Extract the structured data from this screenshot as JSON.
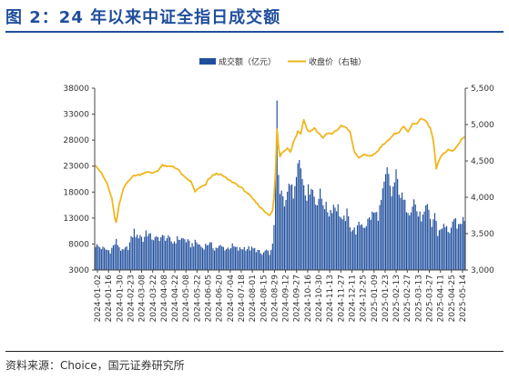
{
  "figure_title": "图 2：24 年以来中证全指日成交额",
  "source_note": "资料来源：Choice，国元证券研究所",
  "chart_data": {
    "type": "bar+line",
    "title": "图 2：24 年以来中证全指日成交额",
    "legend_position": "top-center",
    "grid": false,
    "left_axis": {
      "min": 3000,
      "max": 38000,
      "ticks": [
        "3000",
        "8000",
        "13000",
        "18000",
        "23000",
        "28000",
        "33000",
        "38000"
      ]
    },
    "right_axis": {
      "min": 3000,
      "max": 5500,
      "ticks": [
        "3,000",
        "3,500",
        "4,000",
        "4,500",
        "5,000",
        "5,500"
      ]
    },
    "x_tick_labels": [
      "2024-01-02",
      "2024-01-16",
      "2024-01-30",
      "2024-02-23",
      "2024-03-08",
      "2024-03-22",
      "2024-04-08",
      "2024-04-22",
      "2024-05-08",
      "2024-05-22",
      "2024-06-05",
      "2024-06-20",
      "2024-07-04",
      "2024-07-18",
      "2024-08-01",
      "2024-08-15",
      "2024-08-29",
      "2024-09-12",
      "2024-09-27",
      "2024-10-16",
      "2024-10-30",
      "2024-11-13",
      "2024-11-27",
      "2024-12-11",
      "2024-12-25",
      "2025-01-09",
      "2025-01-23",
      "2025-02-13",
      "2025-02-27",
      "2025-03-13",
      "2025-03-27",
      "2025-04-11",
      "2025-04-25",
      "2025-05-14"
    ],
    "series": [
      {
        "name": "成交额（亿元）",
        "type": "bar",
        "axis": "left",
        "color": "#1f4e9d",
        "anchors": [
          [
            0,
            7800
          ],
          [
            6,
            7000
          ],
          [
            10,
            6700
          ],
          [
            14,
            8500
          ],
          [
            18,
            6500
          ],
          [
            22,
            7400
          ],
          [
            24,
            8900
          ],
          [
            26,
            10500
          ],
          [
            28,
            9200
          ],
          [
            30,
            10000
          ],
          [
            32,
            8600
          ],
          [
            34,
            10500
          ],
          [
            37,
            9400
          ],
          [
            40,
            8900
          ],
          [
            44,
            9300
          ],
          [
            48,
            9200
          ],
          [
            52,
            8300
          ],
          [
            56,
            9100
          ],
          [
            60,
            8900
          ],
          [
            64,
            7800
          ],
          [
            68,
            8300
          ],
          [
            72,
            7300
          ],
          [
            76,
            8200
          ],
          [
            80,
            7200
          ],
          [
            84,
            7500
          ],
          [
            88,
            7100
          ],
          [
            92,
            7600
          ],
          [
            96,
            6900
          ],
          [
            100,
            7300
          ],
          [
            104,
            7100
          ],
          [
            108,
            6900
          ],
          [
            110,
            6400
          ],
          [
            112,
            5900
          ],
          [
            114,
            6600
          ],
          [
            116,
            6300
          ],
          [
            118,
            6500
          ],
          [
            119,
            7600
          ],
          [
            120,
            12000
          ],
          [
            121,
            24000
          ],
          [
            122,
            33000
          ],
          [
            123,
            21000
          ],
          [
            124,
            17000
          ],
          [
            125,
            18000
          ],
          [
            127,
            15000
          ],
          [
            130,
            21000
          ],
          [
            133,
            17000
          ],
          [
            136,
            25500
          ],
          [
            139,
            21000
          ],
          [
            142,
            17500
          ],
          [
            145,
            19500
          ],
          [
            148,
            16000
          ],
          [
            151,
            17500
          ],
          [
            154,
            15500
          ],
          [
            157,
            14000
          ],
          [
            160,
            15500
          ],
          [
            163,
            15000
          ],
          [
            166,
            12000
          ],
          [
            169,
            13800
          ],
          [
            172,
            11000
          ],
          [
            175,
            10500
          ],
          [
            178,
            12000
          ],
          [
            181,
            11500
          ],
          [
            184,
            12800
          ],
          [
            187,
            14000
          ],
          [
            190,
            13500
          ],
          [
            193,
            17500
          ],
          [
            196,
            22000
          ],
          [
            199,
            17500
          ],
          [
            202,
            21000
          ],
          [
            205,
            17500
          ],
          [
            208,
            15500
          ],
          [
            211,
            14500
          ],
          [
            214,
            16500
          ],
          [
            217,
            13500
          ],
          [
            220,
            13000
          ],
          [
            223,
            15000
          ],
          [
            226,
            11500
          ],
          [
            228,
            14000
          ],
          [
            230,
            10000
          ],
          [
            233,
            11500
          ],
          [
            236,
            11000
          ],
          [
            238,
            10500
          ],
          [
            240,
            11500
          ],
          [
            242,
            12500
          ],
          [
            244,
            11000
          ],
          [
            246,
            12500
          ],
          [
            248,
            13000
          ]
        ]
      },
      {
        "name": "收盘价（右轴）",
        "type": "line",
        "axis": "right",
        "color": "#f0b61d",
        "anchors": [
          [
            0,
            4450
          ],
          [
            4,
            4330
          ],
          [
            8,
            4180
          ],
          [
            11,
            3980
          ],
          [
            13,
            3720
          ],
          [
            14,
            3650
          ],
          [
            16,
            3900
          ],
          [
            19,
            4130
          ],
          [
            22,
            4230
          ],
          [
            26,
            4300
          ],
          [
            30,
            4310
          ],
          [
            34,
            4350
          ],
          [
            38,
            4330
          ],
          [
            42,
            4370
          ],
          [
            45,
            4440
          ],
          [
            48,
            4420
          ],
          [
            52,
            4430
          ],
          [
            56,
            4370
          ],
          [
            60,
            4270
          ],
          [
            64,
            4220
          ],
          [
            67,
            4080
          ],
          [
            70,
            4130
          ],
          [
            74,
            4170
          ],
          [
            76,
            4250
          ],
          [
            79,
            4300
          ],
          [
            82,
            4330
          ],
          [
            86,
            4290
          ],
          [
            90,
            4230
          ],
          [
            94,
            4190
          ],
          [
            98,
            4130
          ],
          [
            102,
            4060
          ],
          [
            106,
            3970
          ],
          [
            110,
            3880
          ],
          [
            114,
            3800
          ],
          [
            117,
            3760
          ],
          [
            119,
            3810
          ],
          [
            120,
            4000
          ],
          [
            121,
            4350
          ],
          [
            122,
            4930
          ],
          [
            123,
            4700
          ],
          [
            124,
            4560
          ],
          [
            125,
            4600
          ],
          [
            127,
            4640
          ],
          [
            129,
            4680
          ],
          [
            131,
            4630
          ],
          [
            133,
            4760
          ],
          [
            135,
            4850
          ],
          [
            136,
            4910
          ],
          [
            138,
            4880
          ],
          [
            140,
            5070
          ],
          [
            142,
            4940
          ],
          [
            144,
            4900
          ],
          [
            147,
            4950
          ],
          [
            150,
            4880
          ],
          [
            153,
            4820
          ],
          [
            156,
            4880
          ],
          [
            159,
            4870
          ],
          [
            162,
            4920
          ],
          [
            165,
            4980
          ],
          [
            168,
            4970
          ],
          [
            171,
            4900
          ],
          [
            174,
            4620
          ],
          [
            177,
            4540
          ],
          [
            180,
            4590
          ],
          [
            183,
            4560
          ],
          [
            186,
            4580
          ],
          [
            189,
            4620
          ],
          [
            192,
            4700
          ],
          [
            195,
            4760
          ],
          [
            198,
            4800
          ],
          [
            201,
            4870
          ],
          [
            204,
            4900
          ],
          [
            207,
            4970
          ],
          [
            210,
            4910
          ],
          [
            213,
            5000
          ],
          [
            216,
            5020
          ],
          [
            219,
            5080
          ],
          [
            222,
            5050
          ],
          [
            225,
            4950
          ],
          [
            227,
            4780
          ],
          [
            228,
            4600
          ],
          [
            229,
            4380
          ],
          [
            231,
            4520
          ],
          [
            234,
            4600
          ],
          [
            237,
            4660
          ],
          [
            240,
            4630
          ],
          [
            243,
            4700
          ],
          [
            246,
            4800
          ],
          [
            248,
            4840
          ]
        ]
      }
    ]
  }
}
